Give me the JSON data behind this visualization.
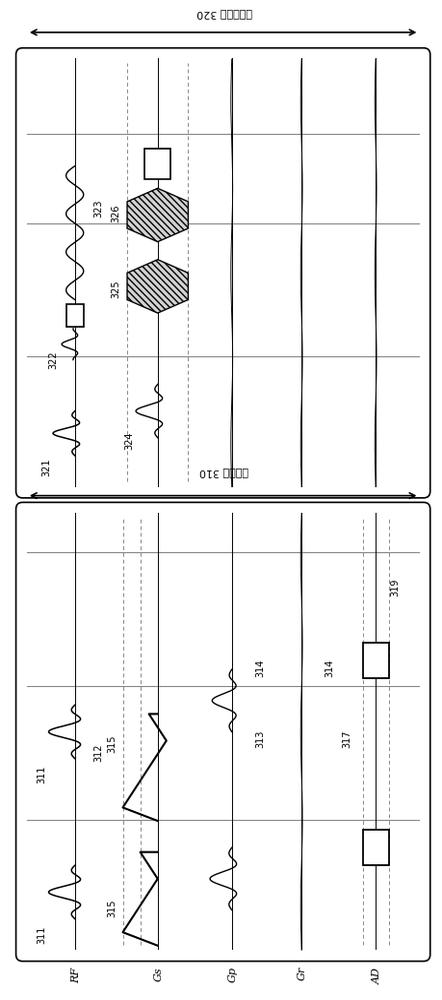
{
  "bg_color": "#ffffff",
  "fig_width": 4.42,
  "fig_height": 10.0,
  "row_labels": [
    "RF",
    "Gs",
    "Gp",
    "Gr",
    "AD"
  ],
  "pre_label": "事先測量 310",
  "main_label": "主撟像測量 320",
  "label_311a": "311",
  "label_311b": "311",
  "label_312": "312",
  "label_313": "313",
  "label_314a": "314",
  "label_314b": "314",
  "label_315a": "315",
  "label_315b": "315",
  "label_317": "317",
  "label_319": "319",
  "label_321": "321",
  "label_322": "322",
  "label_323": "323",
  "label_324": "324",
  "label_325": "325",
  "label_326": "326"
}
